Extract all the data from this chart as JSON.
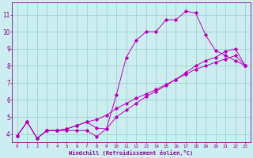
{
  "xlabel": "Windchill (Refroidissement éolien,°C)",
  "bg_color": "#cceef0",
  "line_color": "#bb00bb",
  "grid_color": "#99cccc",
  "xlim": [
    -0.5,
    23.5
  ],
  "ylim": [
    3.5,
    11.7
  ],
  "xticks": [
    0,
    1,
    2,
    3,
    4,
    5,
    6,
    7,
    8,
    9,
    10,
    11,
    12,
    13,
    14,
    15,
    16,
    17,
    18,
    19,
    20,
    21,
    22,
    23
  ],
  "yticks": [
    4,
    5,
    6,
    7,
    8,
    9,
    10,
    11
  ],
  "line1_x": [
    0,
    1,
    2,
    3,
    4,
    5,
    6,
    7,
    8,
    9,
    10,
    11,
    12,
    13,
    14,
    15,
    16,
    17,
    18,
    19,
    20,
    21,
    22,
    23
  ],
  "line1_y": [
    3.9,
    4.7,
    3.75,
    4.2,
    4.2,
    4.2,
    4.2,
    4.2,
    3.85,
    4.3,
    6.3,
    8.5,
    9.5,
    10.0,
    10.0,
    10.7,
    10.7,
    11.2,
    11.1,
    9.8,
    8.9,
    8.6,
    8.3,
    8.0
  ],
  "line2_x": [
    0,
    1,
    2,
    3,
    4,
    5,
    6,
    7,
    8,
    9,
    10,
    11,
    12,
    13,
    14,
    15,
    16,
    17,
    18,
    19,
    20,
    21,
    22,
    23
  ],
  "line2_y": [
    3.9,
    4.7,
    3.75,
    4.2,
    4.2,
    4.3,
    4.5,
    4.7,
    4.85,
    5.1,
    5.5,
    5.8,
    6.1,
    6.35,
    6.6,
    6.9,
    7.2,
    7.5,
    7.8,
    8.0,
    8.2,
    8.4,
    8.6,
    8.0
  ],
  "line3_x": [
    0,
    1,
    2,
    3,
    4,
    5,
    6,
    7,
    8,
    9,
    10,
    11,
    12,
    13,
    14,
    15,
    16,
    17,
    18,
    19,
    20,
    21,
    22,
    23
  ],
  "line3_y": [
    3.9,
    4.7,
    3.75,
    4.2,
    4.2,
    4.3,
    4.5,
    4.7,
    4.35,
    4.3,
    5.0,
    5.4,
    5.8,
    6.2,
    6.5,
    6.85,
    7.2,
    7.6,
    8.0,
    8.3,
    8.5,
    8.85,
    9.0,
    8.0
  ]
}
